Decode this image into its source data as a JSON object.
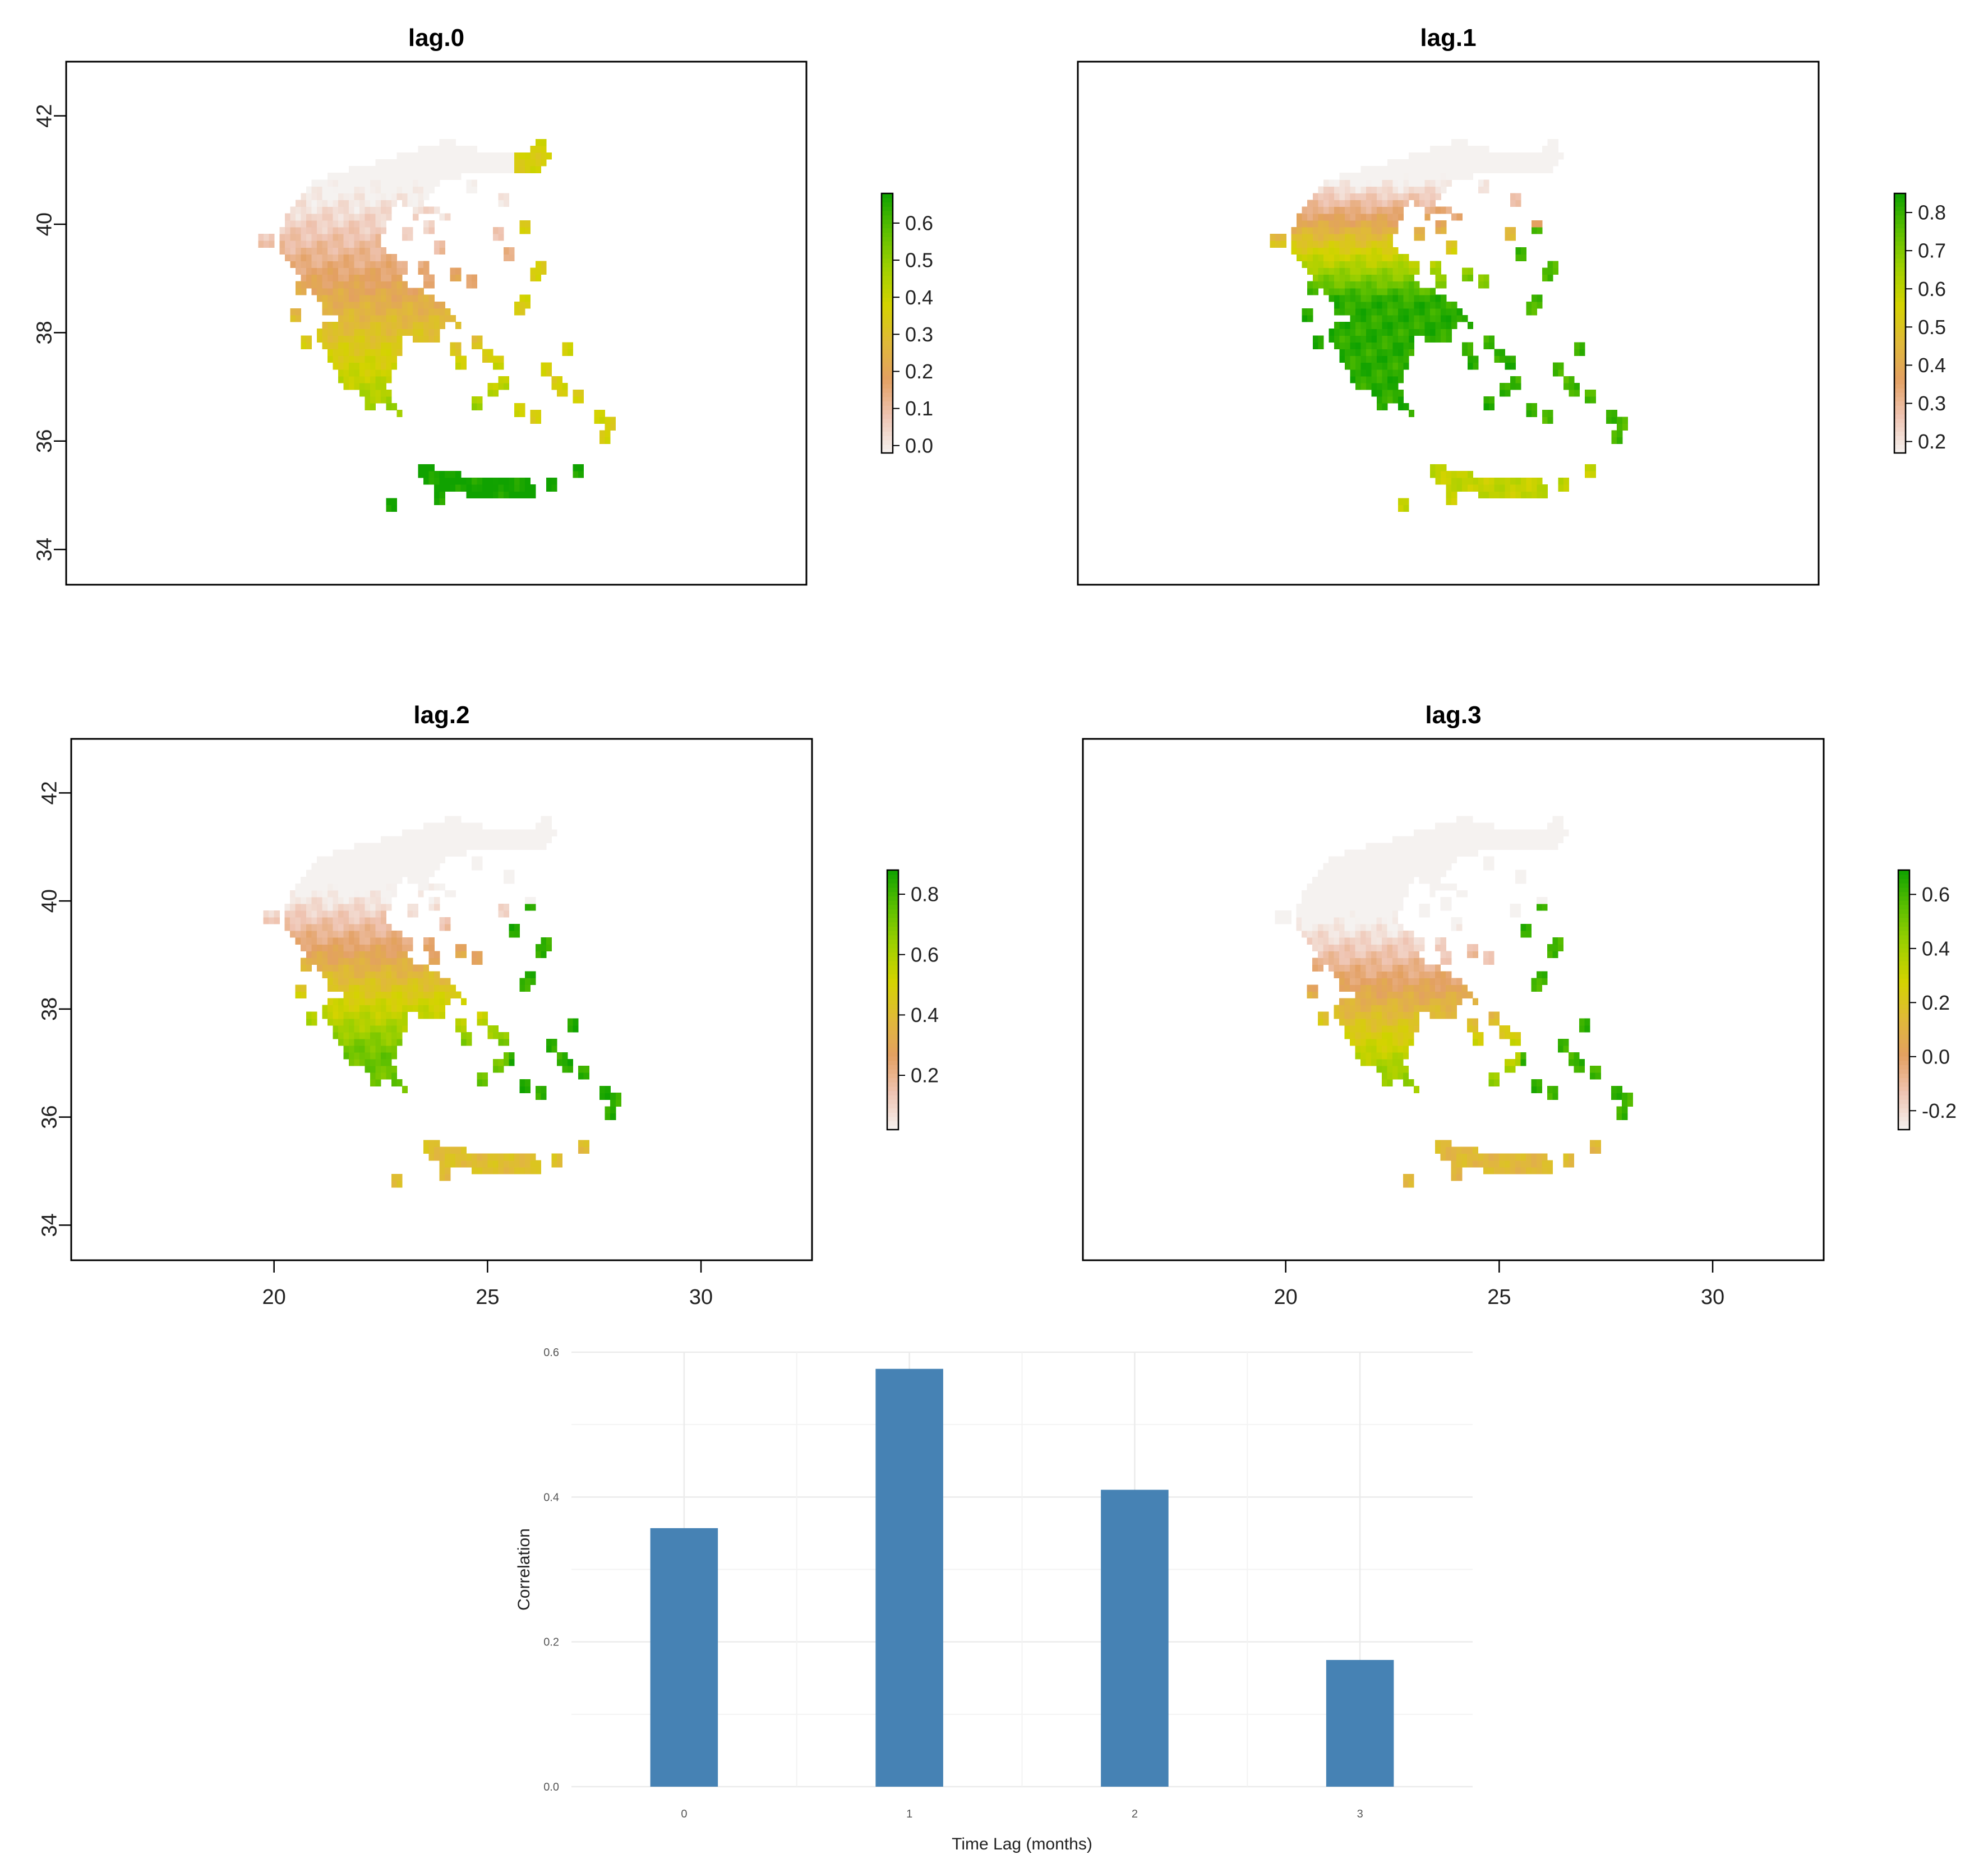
{
  "chart_data": [
    {
      "type": "heatmap",
      "title": "lag.0",
      "panel": "top-left",
      "x_ticks": [],
      "y_ticks": [
        "34",
        "36",
        "38",
        "40",
        "42"
      ],
      "legend": {
        "ticks": [
          "0.0",
          "0.1",
          "0.2",
          "0.3",
          "0.4",
          "0.5",
          "0.6"
        ],
        "range": [
          -0.02,
          0.68
        ]
      }
    },
    {
      "type": "heatmap",
      "title": "lag.1",
      "panel": "top-right",
      "x_ticks": [],
      "y_ticks": [],
      "legend": {
        "ticks": [
          "0.2",
          "0.3",
          "0.4",
          "0.5",
          "0.6",
          "0.7",
          "0.8"
        ],
        "range": [
          0.17,
          0.85
        ]
      }
    },
    {
      "type": "heatmap",
      "title": "lag.2",
      "panel": "bottom-left",
      "x_ticks": [
        "20",
        "25",
        "30"
      ],
      "y_ticks": [
        "34",
        "36",
        "38",
        "40",
        "42"
      ],
      "legend": {
        "ticks": [
          "0.2",
          "0.4",
          "0.6",
          "0.8"
        ],
        "range": [
          0.02,
          0.88
        ]
      }
    },
    {
      "type": "heatmap",
      "title": "lag.3",
      "panel": "bottom-right",
      "x_ticks": [
        "20",
        "25",
        "30"
      ],
      "y_ticks": [],
      "legend": {
        "ticks": [
          "-0.2",
          "0.0",
          "0.2",
          "0.4",
          "0.6"
        ],
        "range": [
          -0.27,
          0.69
        ]
      }
    },
    {
      "type": "bar",
      "title": "",
      "categories": [
        "0",
        "1",
        "2",
        "3"
      ],
      "values": [
        0.357,
        0.577,
        0.41,
        0.175
      ],
      "xlabel": "Time Lag (months)",
      "ylabel": "Correlation",
      "ylim": [
        0,
        0.6
      ],
      "y_ticks": [
        "0.0",
        "0.2",
        "0.4",
        "0.6"
      ],
      "bar_color": "#4682b4",
      "grid": true
    }
  ],
  "colors": {
    "ramp": [
      "#f5f2f0",
      "#efc4b2",
      "#e3a062",
      "#e0ba38",
      "#d4d300",
      "#9fd000",
      "#5cbf00",
      "#10a200"
    ],
    "bar": "#4682b4",
    "gridline": "#ebebeb"
  }
}
